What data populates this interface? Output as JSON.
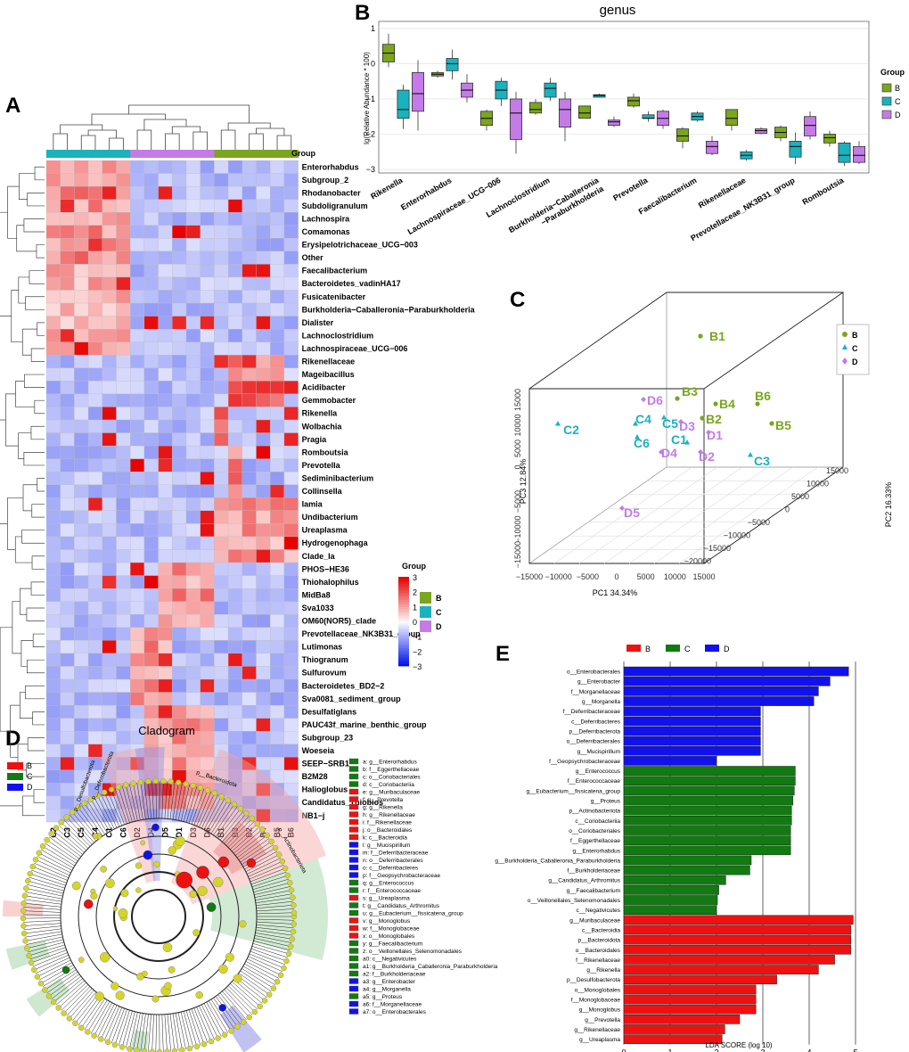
{
  "panel_labels": {
    "a": "A",
    "b": "B",
    "c": "C",
    "d": "D",
    "e": "E"
  },
  "colors": {
    "B": "#7aa51f",
    "C": "#19b2bd",
    "D": "#c47be6",
    "lda_B": "#ee1111",
    "lda_C": "#117a11",
    "lda_D": "#1111ee"
  },
  "chart_data": [
    {
      "id": "heatmap",
      "type": "heatmap",
      "columns": [
        "C2",
        "C3",
        "C5",
        "C4",
        "C1",
        "C6",
        "D2",
        "D4",
        "D5",
        "D1",
        "D3",
        "D6",
        "B1",
        "B3",
        "B2",
        "B4",
        "B5",
        "B6"
      ],
      "column_groups": [
        "C",
        "C",
        "C",
        "C",
        "C",
        "C",
        "D",
        "D",
        "D",
        "D",
        "D",
        "D",
        "B",
        "B",
        "B",
        "B",
        "B",
        "B"
      ],
      "group_label": "Group",
      "rows": [
        "Enterorhabdus",
        "Subgroup_2",
        "Rhodanobacter",
        "Subdoligranulum",
        "Lachnospira",
        "Comamonas",
        "Erysipelotrichaceae_UCG−003",
        "Other",
        "Faecalibacterium",
        "Bacteroidetes_vadinHA17",
        "Fusicatenibacter",
        "Burkholderia−Caballeronia−Paraburkholderia",
        "Dialister",
        "Lachnoclostridium",
        "Lachnospiraceae_UCG−006",
        "Rikenellaceae",
        "Mageibacillus",
        "Acidibacter",
        "Gemmobacter",
        "Rikenella",
        "Wolbachia",
        "Pragia",
        "Romboutsia",
        "Prevotella",
        "Sediminibacterium",
        "Collinsella",
        "Iamia",
        "Undibacterium",
        "Ureaplasma",
        "Hydrogenophaga",
        "Clade_Ia",
        "PHOS−HE36",
        "Thiohalophilus",
        "MidBa8",
        "Sva1033",
        "OM60(NOR5)_clade",
        "Prevotellaceae_NK3B31_group",
        "Lutimonas",
        "Thiogranum",
        "Sulfurovum",
        "Bacteroidetes_BD2−2",
        "Sva0081_sediment_group",
        "Desulfatiglans",
        "PAUC43f_marine_benthic_group",
        "Subgroup_23",
        "Woeseia",
        "SEEP−SRB1",
        "B2M28",
        "Halioglobus",
        "Candidatus_Thiobios",
        "NB1−j"
      ],
      "color_scale": {
        "min": -3,
        "max": 3,
        "ticks": [
          "3",
          "2",
          "1",
          "0",
          "−1",
          "−2",
          "−3"
        ],
        "title": "Group"
      },
      "legend": [
        {
          "key": "B",
          "label": "B"
        },
        {
          "key": "C",
          "label": "C"
        },
        {
          "key": "D",
          "label": "D"
        }
      ]
    },
    {
      "id": "boxplot",
      "type": "box",
      "title": "genus",
      "ylabel": "lg(Relative Abundance * 100)",
      "ylim": [
        -3,
        1
      ],
      "yticks": [
        "1",
        "0",
        "−1",
        "−2",
        "−3"
      ],
      "legend_title": "Group",
      "legend": [
        "B",
        "C",
        "D"
      ],
      "categories": [
        "Rikenella",
        "Enterorhabdus",
        "Lachnospiraceae_UCG−006",
        "Lachnoclostridium",
        "Burkholderia−Caballeronia\n−Paraburkholderia",
        "Prevotella",
        "Faecalibacterium",
        "Rikenellaceae",
        "Prevotellaceae_NK3B31_group",
        "Romboutsia"
      ],
      "series": {
        "B": [
          [
            -0.1,
            0.05,
            0.3,
            0.55,
            0.85
          ],
          [
            -0.4,
            -0.35,
            -0.3,
            -0.25,
            -0.2
          ],
          [
            -1.9,
            -1.75,
            -1.55,
            -1.35,
            -1.3
          ],
          [
            -1.45,
            -1.4,
            -1.3,
            -1.1,
            -1.0
          ],
          [
            -1.55,
            -1.55,
            -1.4,
            -1.2,
            -1.2
          ],
          [
            -1.25,
            -1.2,
            -1.05,
            -0.95,
            -0.85
          ],
          [
            -2.4,
            -2.2,
            -2.05,
            -1.85,
            -1.8
          ],
          [
            -1.9,
            -1.75,
            -1.55,
            -1.3,
            -1.3
          ],
          [
            -2.2,
            -2.1,
            -1.95,
            -1.8,
            -1.75
          ],
          [
            -2.35,
            -2.25,
            -2.1,
            -2.0,
            -1.9
          ]
        ],
        "C": [
          [
            -1.85,
            -1.55,
            -1.3,
            -0.75,
            -0.6
          ],
          [
            -0.45,
            -0.2,
            0.0,
            0.15,
            0.4
          ],
          [
            -1.2,
            -1.0,
            -0.75,
            -0.5,
            -0.4
          ],
          [
            -1.05,
            -0.95,
            -0.7,
            -0.55,
            -0.4
          ],
          [
            -0.95,
            -0.95,
            -0.9,
            -0.88,
            -0.85
          ],
          [
            -1.65,
            -1.55,
            -1.55,
            -1.45,
            -1.35
          ],
          [
            -1.65,
            -1.6,
            -1.5,
            -1.4,
            -1.35
          ],
          [
            -2.75,
            -2.7,
            -2.6,
            -2.5,
            -2.45
          ],
          [
            -2.85,
            -2.65,
            -2.35,
            -2.2,
            -1.95
          ],
          [
            -2.9,
            -2.8,
            -2.6,
            -2.25,
            -2.2
          ]
        ],
        "D": [
          [
            -1.9,
            -1.35,
            -0.85,
            -0.25,
            0.1
          ],
          [
            -1.1,
            -0.95,
            -0.75,
            -0.55,
            -0.3
          ],
          [
            -2.55,
            -2.15,
            -1.4,
            -1.0,
            -0.8
          ],
          [
            -2.2,
            -1.8,
            -1.3,
            -1.0,
            -0.8
          ],
          [
            -1.8,
            -1.75,
            -1.65,
            -1.6,
            -1.5
          ],
          [
            -1.85,
            -1.75,
            -1.55,
            -1.35,
            -1.3
          ],
          [
            -2.6,
            -2.55,
            -2.35,
            -2.2,
            -2.05
          ],
          [
            -2.0,
            -1.98,
            -1.9,
            -1.85,
            -1.8
          ],
          [
            -2.15,
            -2.05,
            -1.75,
            -1.5,
            -1.35
          ],
          [
            -2.85,
            -2.8,
            -2.6,
            -2.35,
            -2.2
          ]
        ]
      }
    },
    {
      "id": "pca3d",
      "type": "scatter",
      "xlabel": "PC1 34.34%",
      "ylabel": "PC2 16.33%",
      "zlabel": "PC3 12.84%",
      "x_ticks": [
        "−15000",
        "−10000",
        "−5000",
        "0",
        "5000",
        "10000",
        "15000"
      ],
      "y_ticks": [
        "15000",
        "10000",
        "5000",
        "0",
        "−5000",
        "−10000",
        "−15000",
        "−20000"
      ],
      "z_ticks": [
        "15000",
        "10000",
        "5000",
        "0",
        "−5000",
        "−10000",
        "−15000"
      ],
      "legend": [
        "B",
        "C",
        "D"
      ],
      "points": [
        {
          "label": "B1",
          "group": "B"
        },
        {
          "label": "B3",
          "group": "B"
        },
        {
          "label": "B4",
          "group": "B"
        },
        {
          "label": "B2",
          "group": "B"
        },
        {
          "label": "B6",
          "group": "B"
        },
        {
          "label": "B5",
          "group": "B"
        },
        {
          "label": "C2",
          "group": "C"
        },
        {
          "label": "C4",
          "group": "C"
        },
        {
          "label": "C5",
          "group": "C"
        },
        {
          "label": "C6",
          "group": "C"
        },
        {
          "label": "C1",
          "group": "C"
        },
        {
          "label": "C3",
          "group": "C"
        },
        {
          "label": "D6",
          "group": "D"
        },
        {
          "label": "D3",
          "group": "D"
        },
        {
          "label": "D1",
          "group": "D"
        },
        {
          "label": "D4",
          "group": "D"
        },
        {
          "label": "D2",
          "group": "D"
        },
        {
          "label": "D5",
          "group": "D"
        }
      ]
    },
    {
      "id": "lda",
      "type": "bar",
      "xlabel": "LDA SCORE (log 10)",
      "xlim": [
        0,
        5
      ],
      "xticks": [
        "0",
        "1",
        "2",
        "3",
        "4",
        "5"
      ],
      "legend": [
        "B",
        "C",
        "D"
      ],
      "categories": [
        "o__Enterobacterales",
        "g__Enterobacter",
        "f__Morganellaceae",
        "g__Morganella",
        "f__Deferribacteraceae",
        "c__Deferribacteres",
        "p__Deferribacterota",
        "o__Deferribacterales",
        "g__Mucispirillum",
        "f__Geopsychrobacteraceae",
        "g__Enterococcus",
        "f__Enterococcaceae",
        "g__Eubacterium__fissicatena_group",
        "g__Proteus",
        "p__Actinobacteriota",
        "c__Coriobacteriia",
        "o__Coriobacteriales",
        "f__Eggerthellaceae",
        "g__Enterorhabdus",
        "g__Burkholderia_Caballeronia_Paraburkholderia",
        "f__Burkholderiaceae",
        "g__Candidatus_Arthromitus",
        "g__Faecalibacterium",
        "o__Veillonellales_Selenomonadales",
        "c__Negativicutes",
        "g__Muribaculaceae",
        "c__Bacteroidia",
        "p__Bacteroidota",
        "o__Bacteroidales",
        "f__Rikenellaceae",
        "g__Rikenella",
        "p__Desulfobacterota",
        "o__Monoglobales",
        "f__Monoglobaceae",
        "g__Monoglobus",
        "g__Prevotella",
        "g__Rikenellaceae",
        "g__Ureaplasma"
      ],
      "values": [
        4.85,
        4.45,
        4.2,
        4.1,
        2.95,
        2.95,
        2.95,
        2.95,
        2.95,
        2.0,
        3.7,
        3.7,
        3.68,
        3.65,
        3.62,
        3.62,
        3.6,
        3.6,
        3.6,
        2.75,
        2.72,
        2.2,
        2.05,
        2.02,
        2.0,
        4.95,
        4.9,
        4.9,
        4.9,
        4.55,
        4.2,
        3.3,
        2.85,
        2.85,
        2.85,
        2.5,
        2.18,
        2.12
      ],
      "groups": [
        "D",
        "D",
        "D",
        "D",
        "D",
        "D",
        "D",
        "D",
        "D",
        "D",
        "C",
        "C",
        "C",
        "C",
        "C",
        "C",
        "C",
        "C",
        "C",
        "C",
        "C",
        "C",
        "C",
        "C",
        "C",
        "B",
        "B",
        "B",
        "B",
        "B",
        "B",
        "B",
        "B",
        "B",
        "B",
        "B",
        "B",
        "B"
      ]
    },
    {
      "id": "cladogram",
      "type": "diagram",
      "title": "Cladogram",
      "legend": [
        "B",
        "C",
        "D"
      ],
      "clade_labels": [
        "p__Desulfobacterota",
        "p__Deferribacterota",
        "p__Bacteroidota",
        "p__Actinobacteriota"
      ],
      "key": [
        {
          "code": "a: g__Enterorhabdus",
          "group": "C"
        },
        {
          "code": "b: f__Eggerthellaceae",
          "group": "C"
        },
        {
          "code": "c: o__Coriobacteriales",
          "group": "C"
        },
        {
          "code": "d: c__Coriobacteriia",
          "group": "C"
        },
        {
          "code": "e: g__Muribaculaceae",
          "group": "B"
        },
        {
          "code": "f: g__Prevotella",
          "group": "B"
        },
        {
          "code": "g: g__Rikenella",
          "group": "B"
        },
        {
          "code": "h: g__Rikenellaceae",
          "group": "B"
        },
        {
          "code": "i: f__Rikenellaceae",
          "group": "B"
        },
        {
          "code": "j: o__Bacteroidales",
          "group": "B"
        },
        {
          "code": "k: c__Bacteroidia",
          "group": "B"
        },
        {
          "code": "l: g__Mucispirillum",
          "group": "D"
        },
        {
          "code": "m: f__Deferribacteraceae",
          "group": "D"
        },
        {
          "code": "n: o__Deferribacterales",
          "group": "D"
        },
        {
          "code": "o: c__Deferribacteres",
          "group": "D"
        },
        {
          "code": "p: f__Geopsychrobacteraceae",
          "group": "D"
        },
        {
          "code": "q: g__Enterococcus",
          "group": "C"
        },
        {
          "code": "r: f__Enterococcaceae",
          "group": "C"
        },
        {
          "code": "s: g__Ureaplasma",
          "group": "B"
        },
        {
          "code": "t: g__Candidatus_Arthromitus",
          "group": "C"
        },
        {
          "code": "u: g__Eubacterium__fissicatena_group",
          "group": "C"
        },
        {
          "code": "v: g__Monoglobus",
          "group": "B"
        },
        {
          "code": "w: f__Monoglobaceae",
          "group": "B"
        },
        {
          "code": "x: o__Monoglobales",
          "group": "B"
        },
        {
          "code": "y: g__Faecalibacterium",
          "group": "C"
        },
        {
          "code": "z: o__Veillonellales_Selenomonadales",
          "group": "C"
        },
        {
          "code": "a0: c__Negativicutes",
          "group": "C"
        },
        {
          "code": "a1: g__Burkholderia_Caballeronia_Paraburkholderia",
          "group": "C"
        },
        {
          "code": "a2: f__Burkholderiaceae",
          "group": "C"
        },
        {
          "code": "a3: g__Enterobacter",
          "group": "D"
        },
        {
          "code": "a4: g__Morganella",
          "group": "D"
        },
        {
          "code": "a5: g__Proteus",
          "group": "C"
        },
        {
          "code": "a6: f__Morganellaceae",
          "group": "D"
        },
        {
          "code": "a7: o__Enterobacterales",
          "group": "D"
        }
      ]
    }
  ]
}
